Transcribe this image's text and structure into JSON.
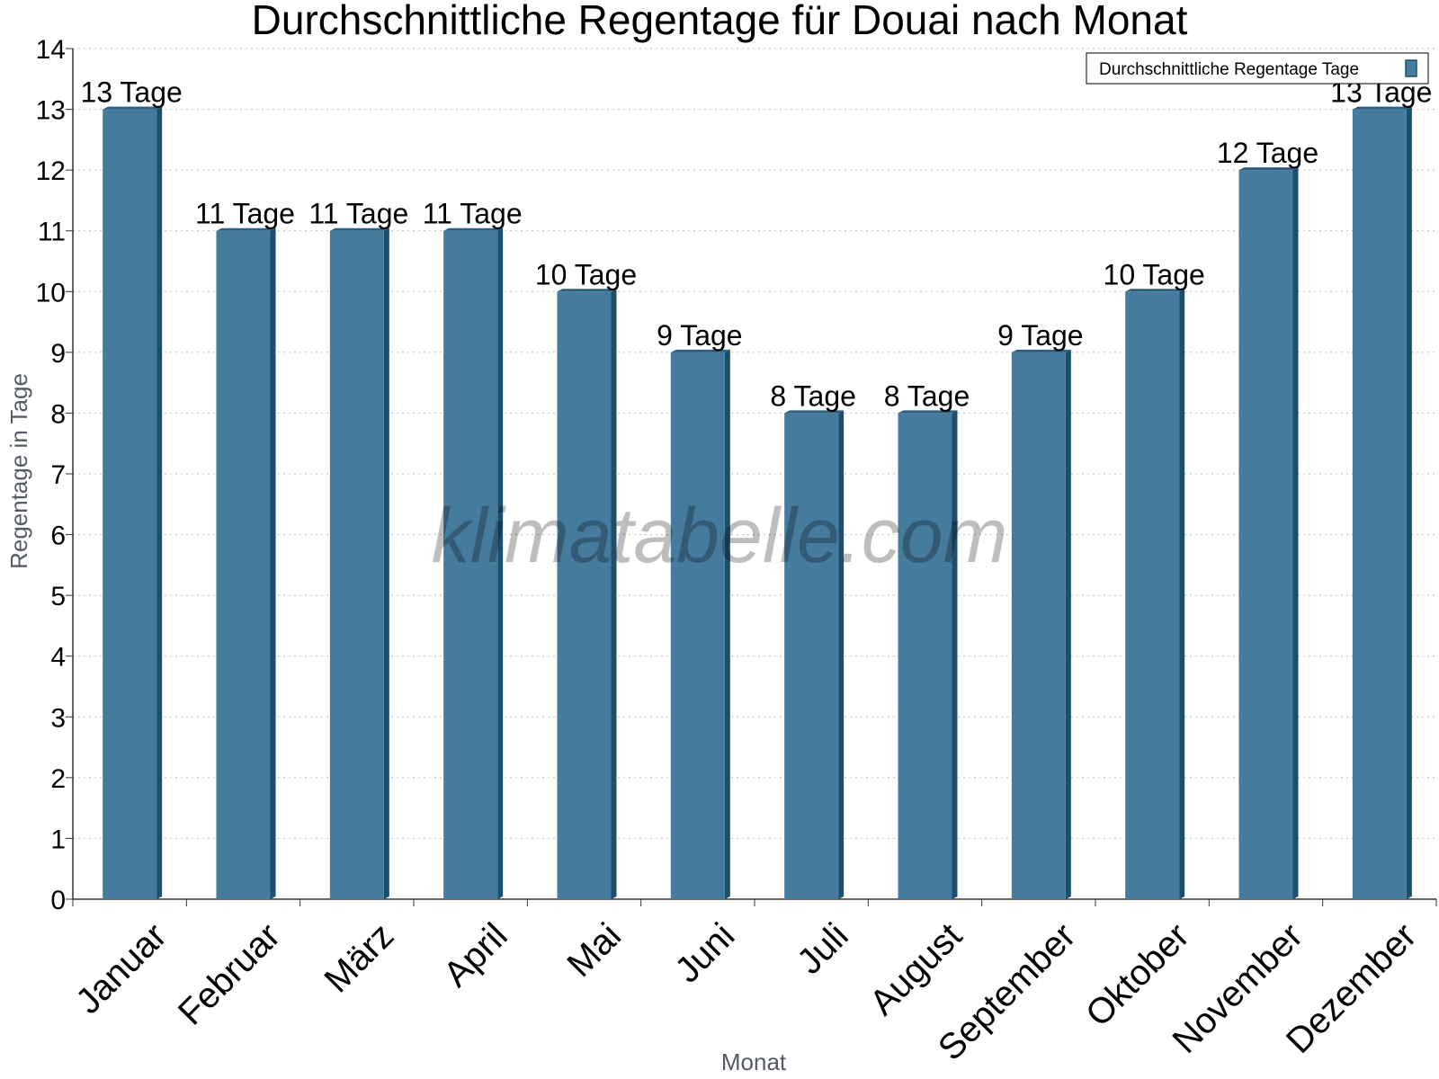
{
  "chart_data": {
    "type": "bar",
    "title": "Durchschnittliche Regentage für Douai nach Monat",
    "xlabel": "Monat",
    "ylabel": "Regentage in Tage",
    "categories": [
      "Januar",
      "Februar",
      "März",
      "April",
      "Mai",
      "Juni",
      "Juli",
      "August",
      "September",
      "Oktober",
      "November",
      "Dezember"
    ],
    "series": [
      {
        "name": "Durchschnittliche Regentage Tage",
        "values": [
          13,
          11,
          11,
          11,
          10,
          9,
          8,
          8,
          9,
          10,
          12,
          13
        ],
        "data_labels": [
          "13 Tage",
          "11 Tage",
          "11 Tage",
          "11 Tage",
          "10 Tage",
          "9 Tage",
          "8 Tage",
          "8 Tage",
          "9 Tage",
          "10 Tage",
          "12 Tage",
          "13 Tage"
        ]
      }
    ],
    "ylim": [
      0,
      14
    ],
    "yticks": [
      "0",
      "1",
      "2",
      "3",
      "4",
      "5",
      "6",
      "7",
      "8",
      "9",
      "10",
      "11",
      "12",
      "13",
      "14"
    ],
    "grid": true,
    "legend_position": "top-right",
    "colors": {
      "bar": "#457b9d",
      "bar_side": "#1d4e6e",
      "bar_top": "#2f5f80",
      "grid": "#bbbbbb",
      "axis": "#333333"
    },
    "watermark": "klimatabelle.com"
  }
}
